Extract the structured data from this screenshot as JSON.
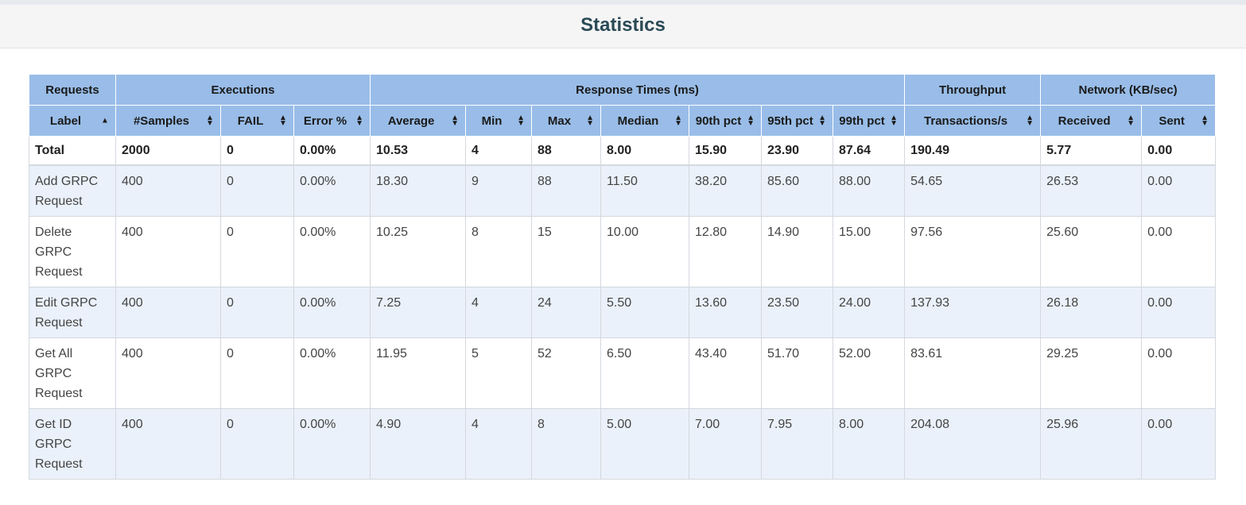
{
  "title": "Statistics",
  "colors": {
    "header_bg": "#99bde8",
    "alt_row_bg": "#eaf1fa",
    "title_color": "#2b4a57"
  },
  "groups": [
    "Requests",
    "Executions",
    "Response Times (ms)",
    "Throughput",
    "Network (KB/sec)"
  ],
  "columns": [
    "Label",
    "#Samples",
    "FAIL",
    "Error %",
    "Average",
    "Min",
    "Max",
    "Median",
    "90th pct",
    "95th pct",
    "99th pct",
    "Transactions/s",
    "Received",
    "Sent"
  ],
  "sort_state": {
    "column": "Label",
    "direction": "ascending"
  },
  "total": [
    "Total",
    "2000",
    "0",
    "0.00%",
    "10.53",
    "4",
    "88",
    "8.00",
    "15.90",
    "23.90",
    "87.64",
    "190.49",
    "5.77",
    "0.00"
  ],
  "rows": [
    [
      "Add GRPC Request",
      "400",
      "0",
      "0.00%",
      "18.30",
      "9",
      "88",
      "11.50",
      "38.20",
      "85.60",
      "88.00",
      "54.65",
      "26.53",
      "0.00"
    ],
    [
      "Delete GRPC Request",
      "400",
      "0",
      "0.00%",
      "10.25",
      "8",
      "15",
      "10.00",
      "12.80",
      "14.90",
      "15.00",
      "97.56",
      "25.60",
      "0.00"
    ],
    [
      "Edit GRPC Request",
      "400",
      "0",
      "0.00%",
      "7.25",
      "4",
      "24",
      "5.50",
      "13.60",
      "23.50",
      "24.00",
      "137.93",
      "26.18",
      "0.00"
    ],
    [
      "Get All GRPC Request",
      "400",
      "0",
      "0.00%",
      "11.95",
      "5",
      "52",
      "6.50",
      "43.40",
      "51.70",
      "52.00",
      "83.61",
      "29.25",
      "0.00"
    ],
    [
      "Get ID GRPC Request",
      "400",
      "0",
      "0.00%",
      "4.90",
      "4",
      "8",
      "5.00",
      "7.00",
      "7.95",
      "8.00",
      "204.08",
      "25.96",
      "0.00"
    ]
  ]
}
